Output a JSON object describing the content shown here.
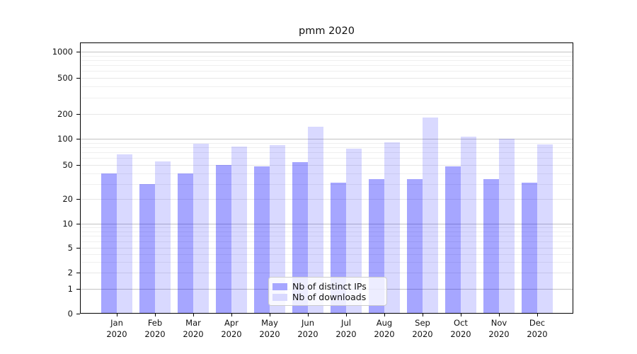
{
  "chart_data": {
    "type": "bar",
    "title": "pmm 2020",
    "yscale": "symlog",
    "grid": true,
    "ylim": [
      0,
      1300
    ],
    "y_ticks": [
      0,
      1,
      2,
      5,
      10,
      20,
      50,
      100,
      200,
      500,
      1000
    ],
    "categories": [
      "Jan",
      "Feb",
      "Mar",
      "Apr",
      "May",
      "Jun",
      "Jul",
      "Aug",
      "Sep",
      "Oct",
      "Nov",
      "Dec"
    ],
    "x_year": "2020",
    "legend_position": "lower center",
    "series": [
      {
        "name": "Nb of distinct IPs",
        "color": "rgba(0,0,255,0.35)",
        "legend_color": "#a6a6ff",
        "values": [
          40,
          30,
          40,
          50,
          48,
          54,
          31,
          34,
          34,
          48,
          34,
          31
        ]
      },
      {
        "name": "Nb of downloads",
        "color": "rgba(0,0,255,0.15)",
        "legend_color": "#d9d9ff",
        "values": [
          66,
          55,
          87,
          81,
          84,
          140,
          77,
          91,
          180,
          107,
          100,
          86
        ]
      }
    ]
  }
}
